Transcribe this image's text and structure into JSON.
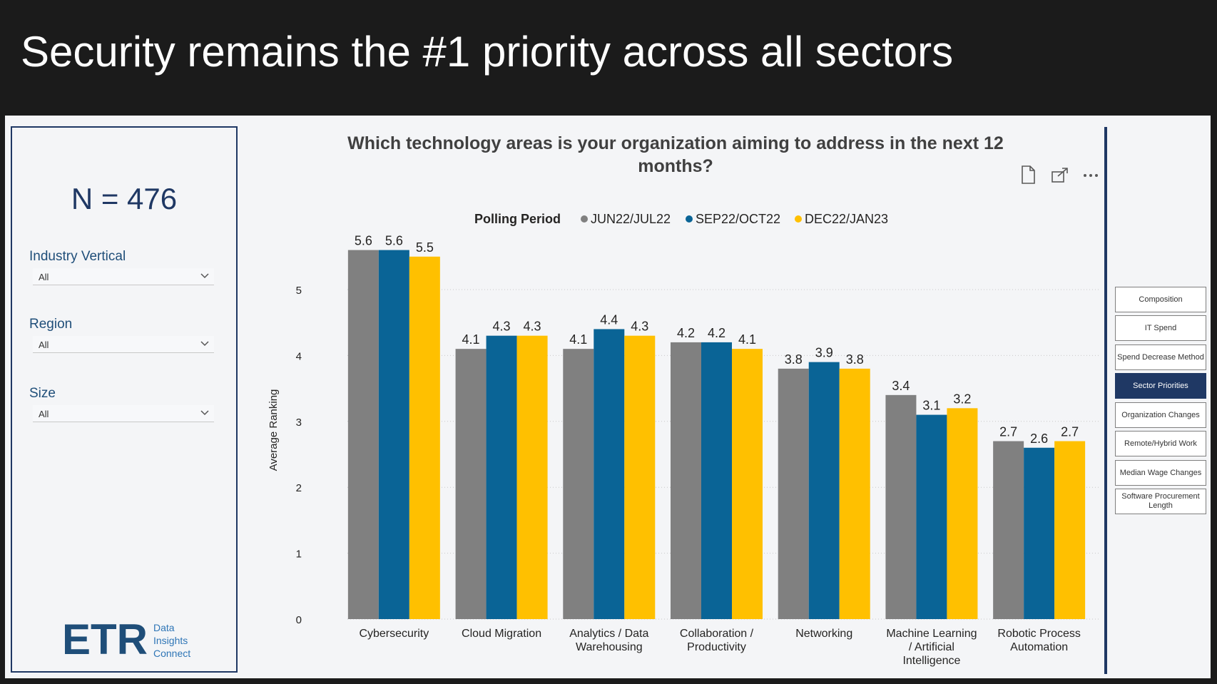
{
  "slide": {
    "title": "Security remains the #1 priority across all sectors"
  },
  "filters": {
    "n_label": "N = 476",
    "industry": {
      "label": "Industry Vertical",
      "value": "All"
    },
    "region": {
      "label": "Region",
      "value": "All"
    },
    "size": {
      "label": "Size",
      "value": "All"
    }
  },
  "logo": {
    "mark": "ETR",
    "line1": "Data",
    "line2": "Insights",
    "line3": "Connect",
    "color": "#1f4e79",
    "accent": "#2e75b6"
  },
  "toolbar_icons": [
    "page-icon",
    "focus-mode-icon",
    "more-options-icon"
  ],
  "nav": {
    "items": [
      {
        "label": "Composition",
        "active": false
      },
      {
        "label": "IT Spend",
        "active": false
      },
      {
        "label": "Spend Decrease Method",
        "active": false
      },
      {
        "label": "Sector Priorities",
        "active": true
      },
      {
        "label": "Organization Changes",
        "active": false
      },
      {
        "label": "Remote/Hybrid Work",
        "active": false
      },
      {
        "label": "Median Wage Changes",
        "active": false
      },
      {
        "label": "Software Procurement Length",
        "active": false
      }
    ]
  },
  "chart_data": {
    "type": "bar",
    "title": "Which technology areas is your organization aiming to address in the next 12 months?",
    "legend_title": "Polling Period",
    "legend_position": "top-center",
    "xlabel": "",
    "ylabel": "Average Ranking",
    "ylim": [
      0,
      5.6
    ],
    "yticks": [
      0,
      1,
      2,
      3,
      4,
      5
    ],
    "grid": true,
    "categories": [
      "Cybersecurity",
      "Cloud Migration",
      "Analytics / Data Warehousing",
      "Collaboration / Productivity",
      "Networking",
      "Machine Learning / Artificial Intelligence",
      "Robotic Process Automation"
    ],
    "series": [
      {
        "name": "JUN22/JUL22",
        "color": "#808080",
        "values": [
          5.6,
          4.1,
          4.1,
          4.2,
          3.8,
          3.4,
          2.7
        ]
      },
      {
        "name": "SEP22/OCT22",
        "color": "#0a6496",
        "values": [
          5.6,
          4.3,
          4.4,
          4.2,
          3.9,
          3.1,
          2.6
        ]
      },
      {
        "name": "DEC22/JAN23",
        "color": "#ffc000",
        "values": [
          5.5,
          4.3,
          4.3,
          4.1,
          3.8,
          3.2,
          2.7
        ]
      }
    ],
    "data_labels": [
      [
        "5.6",
        "4.1",
        "4.1",
        "4.2",
        "3.8",
        "3.4",
        "2.7"
      ],
      [
        "5.6",
        "4.3",
        "4.4",
        "4.2",
        "3.9",
        "3.1",
        "2.6"
      ],
      [
        "5.5",
        "4.3",
        "4.3",
        "4.1",
        "3.8",
        "3.2",
        "2.7"
      ]
    ],
    "category_label_lines": [
      [
        "Cybersecurity"
      ],
      [
        "Cloud Migration"
      ],
      [
        "Analytics / Data",
        "Warehousing"
      ],
      [
        "Collaboration /",
        "Productivity"
      ],
      [
        "Networking"
      ],
      [
        "Machine Learning",
        "/ Artificial",
        "Intelligence"
      ],
      [
        "Robotic Process",
        "Automation"
      ]
    ]
  }
}
